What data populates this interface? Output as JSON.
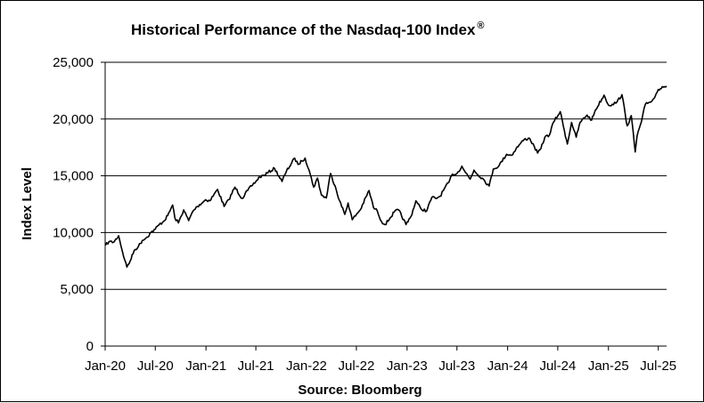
{
  "chart_data": {
    "type": "line",
    "title": "Historical Performance of the Nasdaq-100 Index",
    "title_mark": "®",
    "ylabel": "Index Level",
    "xlabel": "Source: Bloomberg",
    "ylim": [
      0,
      25000
    ],
    "yticks": [
      {
        "value": 0,
        "label": "0"
      },
      {
        "value": 5000,
        "label": "5,000"
      },
      {
        "value": 10000,
        "label": "10,000"
      },
      {
        "value": 15000,
        "label": "15,000"
      },
      {
        "value": 20000,
        "label": "20,000"
      },
      {
        "value": 25000,
        "label": "25,000"
      }
    ],
    "xlim": [
      "2020-01-01",
      "2025-07-31"
    ],
    "xticks": [
      {
        "date": "2020-01-01",
        "label": "Jan-20"
      },
      {
        "date": "2020-07-01",
        "label": "Jul-20"
      },
      {
        "date": "2021-01-01",
        "label": "Jan-21"
      },
      {
        "date": "2021-07-01",
        "label": "Jul-21"
      },
      {
        "date": "2022-01-01",
        "label": "Jan-22"
      },
      {
        "date": "2022-07-01",
        "label": "Jul-22"
      },
      {
        "date": "2023-01-01",
        "label": "Jan-23"
      },
      {
        "date": "2023-07-01",
        "label": "Jul-23"
      },
      {
        "date": "2024-01-01",
        "label": "Jan-24"
      },
      {
        "date": "2024-07-01",
        "label": "Jul-24"
      },
      {
        "date": "2025-01-01",
        "label": "Jan-25"
      },
      {
        "date": "2025-07-01",
        "label": "Jul-25"
      }
    ],
    "grid": "horizontal",
    "line_color": "#000000",
    "series": [
      {
        "points": [
          [
            "2020-01-02",
            8873
          ],
          [
            "2020-01-15",
            9200
          ],
          [
            "2020-02-01",
            9150
          ],
          [
            "2020-02-19",
            9720
          ],
          [
            "2020-03-01",
            8600
          ],
          [
            "2020-03-12",
            7600
          ],
          [
            "2020-03-20",
            6960
          ],
          [
            "2020-04-01",
            7500
          ],
          [
            "2020-04-15",
            8400
          ],
          [
            "2020-05-01",
            8800
          ],
          [
            "2020-05-15",
            9300
          ],
          [
            "2020-06-01",
            9600
          ],
          [
            "2020-06-15",
            10000
          ],
          [
            "2020-07-01",
            10300
          ],
          [
            "2020-07-15",
            10700
          ],
          [
            "2020-08-01",
            11000
          ],
          [
            "2020-08-15",
            11500
          ],
          [
            "2020-09-02",
            12420
          ],
          [
            "2020-09-10",
            11300
          ],
          [
            "2020-09-23",
            10850
          ],
          [
            "2020-10-12",
            12000
          ],
          [
            "2020-10-30",
            11050
          ],
          [
            "2020-11-15",
            11900
          ],
          [
            "2020-12-01",
            12300
          ],
          [
            "2020-12-31",
            12888
          ],
          [
            "2021-01-15",
            12800
          ],
          [
            "2021-02-12",
            13800
          ],
          [
            "2021-03-08",
            12300
          ],
          [
            "2021-03-25",
            12900
          ],
          [
            "2021-04-16",
            14000
          ],
          [
            "2021-05-12",
            13000
          ],
          [
            "2021-06-01",
            13700
          ],
          [
            "2021-06-15",
            14100
          ],
          [
            "2021-07-01",
            14500
          ],
          [
            "2021-07-15",
            14900
          ],
          [
            "2021-08-01",
            15050
          ],
          [
            "2021-08-15",
            15300
          ],
          [
            "2021-09-07",
            15650
          ],
          [
            "2021-10-04",
            14500
          ],
          [
            "2021-10-20",
            15400
          ],
          [
            "2021-11-19",
            16550
          ],
          [
            "2021-12-01",
            16000
          ],
          [
            "2021-12-15",
            16300
          ],
          [
            "2021-12-27",
            16560
          ],
          [
            "2022-01-10",
            15500
          ],
          [
            "2022-01-27",
            14000
          ],
          [
            "2022-02-10",
            14800
          ],
          [
            "2022-02-24",
            13300
          ],
          [
            "2022-03-14",
            13050
          ],
          [
            "2022-03-29",
            15200
          ],
          [
            "2022-04-15",
            14100
          ],
          [
            "2022-05-01",
            12800
          ],
          [
            "2022-05-20",
            11600
          ],
          [
            "2022-06-01",
            12600
          ],
          [
            "2022-06-16",
            11130
          ],
          [
            "2022-07-01",
            11600
          ],
          [
            "2022-07-15",
            12000
          ],
          [
            "2022-08-16",
            13700
          ],
          [
            "2022-09-01",
            12200
          ],
          [
            "2022-09-15",
            11900
          ],
          [
            "2022-09-30",
            10970
          ],
          [
            "2022-10-13",
            10700
          ],
          [
            "2022-11-01",
            11300
          ],
          [
            "2022-11-15",
            11800
          ],
          [
            "2022-12-01",
            12000
          ],
          [
            "2022-12-28",
            10700
          ],
          [
            "2023-01-15",
            11400
          ],
          [
            "2023-02-02",
            12800
          ],
          [
            "2023-02-20",
            12100
          ],
          [
            "2023-03-13",
            11900
          ],
          [
            "2023-04-01",
            13100
          ],
          [
            "2023-04-15",
            13000
          ],
          [
            "2023-05-01",
            13200
          ],
          [
            "2023-05-15",
            13800
          ],
          [
            "2023-06-01",
            14400
          ],
          [
            "2023-06-15",
            15150
          ],
          [
            "2023-07-01",
            15200
          ],
          [
            "2023-07-19",
            15850
          ],
          [
            "2023-08-01",
            15300
          ],
          [
            "2023-08-18",
            14700
          ],
          [
            "2023-09-01",
            15500
          ],
          [
            "2023-09-15",
            15100
          ],
          [
            "2023-10-01",
            14800
          ],
          [
            "2023-10-26",
            14100
          ],
          [
            "2023-11-10",
            15600
          ],
          [
            "2023-12-01",
            15900
          ],
          [
            "2023-12-28",
            16900
          ],
          [
            "2024-01-15",
            16800
          ],
          [
            "2024-02-01",
            17400
          ],
          [
            "2024-02-15",
            17800
          ],
          [
            "2024-03-01",
            18200
          ],
          [
            "2024-03-21",
            18300
          ],
          [
            "2024-04-19",
            17000
          ],
          [
            "2024-05-01",
            17400
          ],
          [
            "2024-05-15",
            18400
          ],
          [
            "2024-06-01",
            18600
          ],
          [
            "2024-06-15",
            19700
          ],
          [
            "2024-07-10",
            20650
          ],
          [
            "2024-07-25",
            19000
          ],
          [
            "2024-08-05",
            17800
          ],
          [
            "2024-08-20",
            19700
          ],
          [
            "2024-09-06",
            18400
          ],
          [
            "2024-09-20",
            19700
          ],
          [
            "2024-10-15",
            20350
          ],
          [
            "2024-11-01",
            19900
          ],
          [
            "2024-11-15",
            20800
          ],
          [
            "2024-12-16",
            22100
          ],
          [
            "2025-01-02",
            21200
          ],
          [
            "2025-01-15",
            21300
          ],
          [
            "2025-02-01",
            21500
          ],
          [
            "2025-02-19",
            22150
          ],
          [
            "2025-03-10",
            19400
          ],
          [
            "2025-03-25",
            20300
          ],
          [
            "2025-04-08",
            17100
          ],
          [
            "2025-04-15",
            18500
          ],
          [
            "2025-05-01",
            19800
          ],
          [
            "2025-05-15",
            21300
          ],
          [
            "2025-06-01",
            21500
          ],
          [
            "2025-06-15",
            21800
          ],
          [
            "2025-07-01",
            22600
          ],
          [
            "2025-07-15",
            22850
          ],
          [
            "2025-07-31",
            22900
          ]
        ]
      }
    ]
  }
}
